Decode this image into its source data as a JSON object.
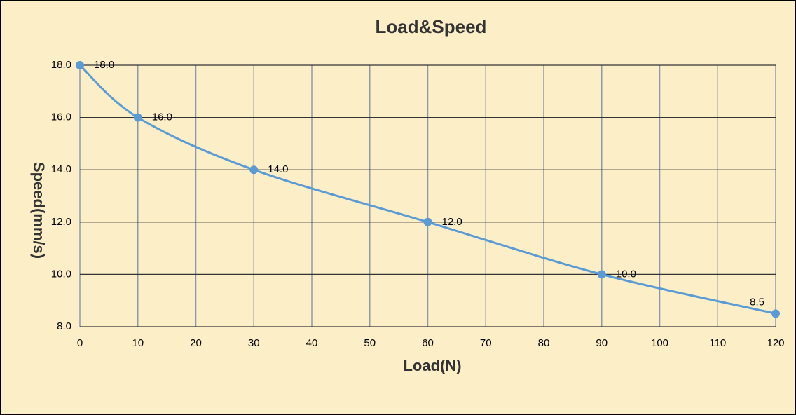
{
  "chart_data": {
    "type": "line",
    "title": "Load&Speed",
    "x_label": "Load(N)",
    "y_label": "Speed(mm/s)",
    "x": [
      0,
      10,
      30,
      60,
      90,
      120
    ],
    "series": [
      {
        "name": "Speed",
        "color": "#5b9bd5",
        "values": [
          18,
          16,
          14,
          12,
          10,
          8.5
        ],
        "value_labels": [
          "18.0",
          "16.0",
          "14.0",
          "12.0",
          "10.0",
          "8.5"
        ]
      }
    ],
    "xlim": [
      0,
      120
    ],
    "xticks": [
      0,
      10,
      20,
      30,
      40,
      50,
      60,
      70,
      80,
      90,
      100,
      110,
      120
    ],
    "ylim": [
      8,
      18
    ],
    "yticks": [
      {
        "value": 8,
        "label": "8.0"
      },
      {
        "value": 10,
        "label": "10.0"
      },
      {
        "value": 12,
        "label": "12.0"
      },
      {
        "value": 14,
        "label": "14.0"
      },
      {
        "value": 16,
        "label": "16.0"
      },
      {
        "value": 18,
        "label": "18.0"
      }
    ],
    "grid": true,
    "smooth": true
  }
}
